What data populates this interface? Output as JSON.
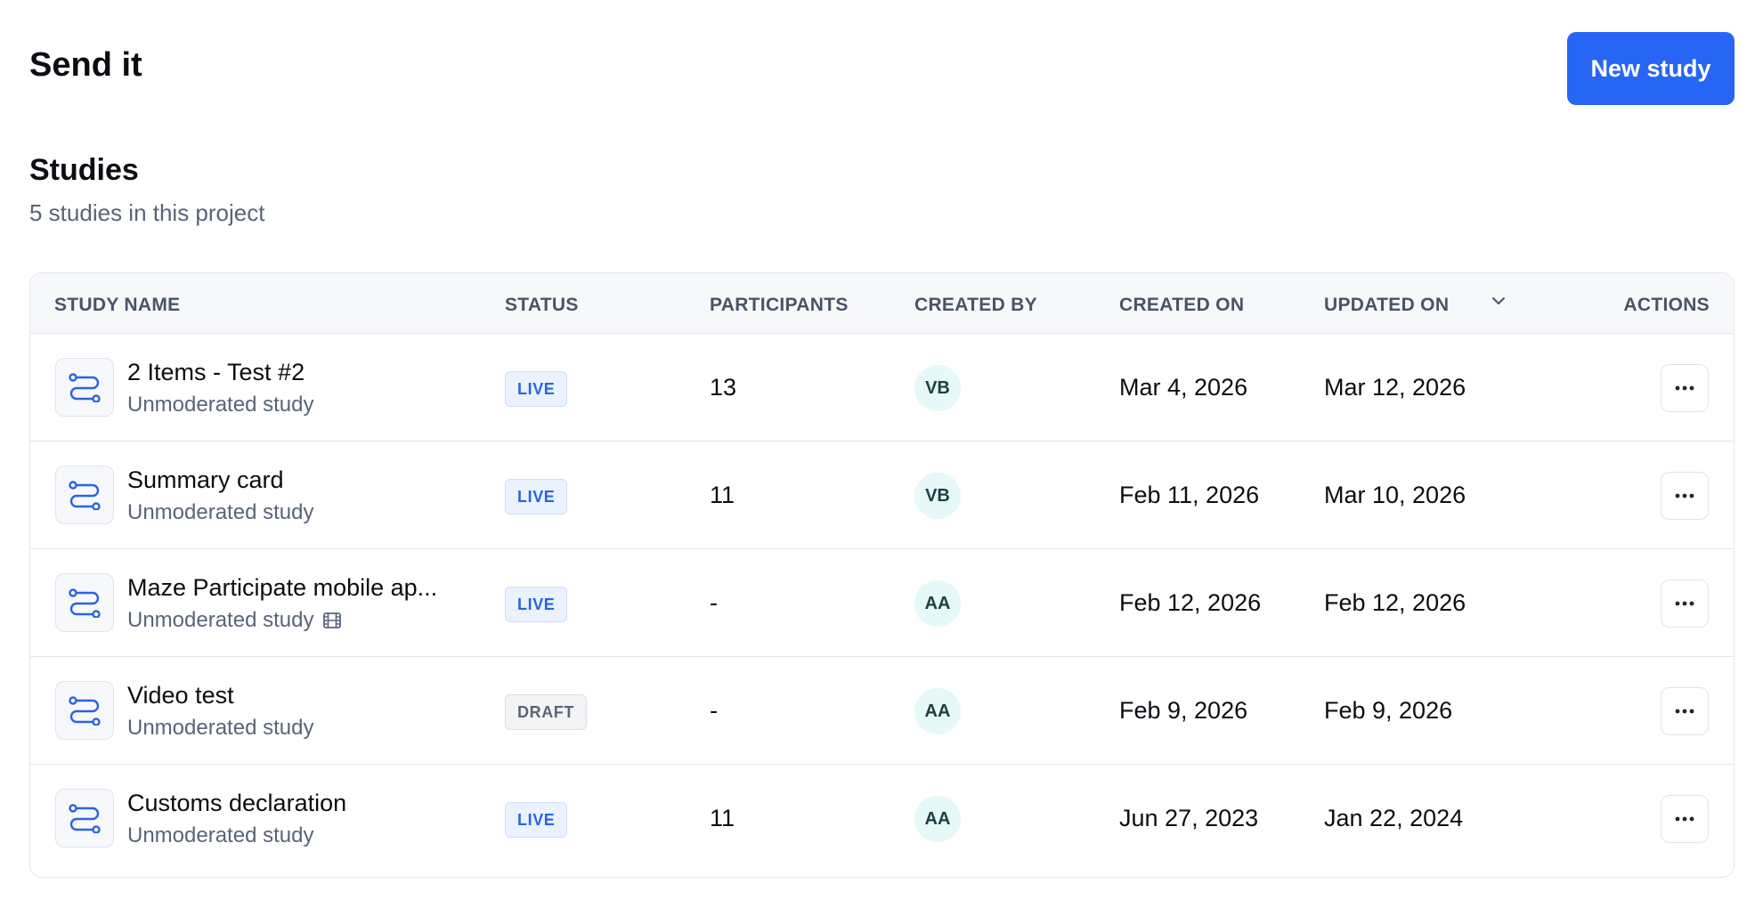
{
  "header": {
    "title": "Send it",
    "new_study_label": "New study"
  },
  "section": {
    "title": "Studies",
    "subtitle": "5 studies in this project"
  },
  "table": {
    "columns": [
      "STUDY NAME",
      "STATUS",
      "PARTICIPANTS",
      "CREATED BY",
      "CREATED ON",
      "UPDATED ON",
      "ACTIONS"
    ],
    "sort_icon": "chevron-down-icon",
    "rows": [
      {
        "name": "2 Items - Test #2",
        "type": "Unmoderated study",
        "status": "LIVE",
        "participants": "13",
        "created_by": "VB",
        "created_on": "Mar 4, 2026",
        "updated_on": "Mar 12, 2026"
      },
      {
        "name": "Summary card",
        "type": "Unmoderated study",
        "status": "LIVE",
        "participants": "11",
        "created_by": "VB",
        "created_on": "Feb 11, 2026",
        "updated_on": "Mar 10, 2026"
      },
      {
        "name": "Maze Participate mobile ap...",
        "type": "Unmoderated study",
        "status": "LIVE",
        "participants": "-",
        "created_by": "AA",
        "created_on": "Feb 12, 2026",
        "updated_on": "Feb 12, 2026",
        "type_icon": "film-icon"
      },
      {
        "name": "Video test",
        "type": "Unmoderated study",
        "status": "DRAFT",
        "participants": "-",
        "created_by": "AA",
        "created_on": "Feb 9, 2026",
        "updated_on": "Feb 9, 2026"
      },
      {
        "name": "Customs declaration",
        "type": "Unmoderated study",
        "status": "LIVE",
        "participants": "11",
        "created_by": "AA",
        "created_on": "Jun 27, 2023",
        "updated_on": "Jan 22, 2024"
      }
    ]
  },
  "colors": {
    "accent": "#2766f5",
    "live_badge": "#2a64e0",
    "avatar_bg": "#e6f8f7"
  }
}
